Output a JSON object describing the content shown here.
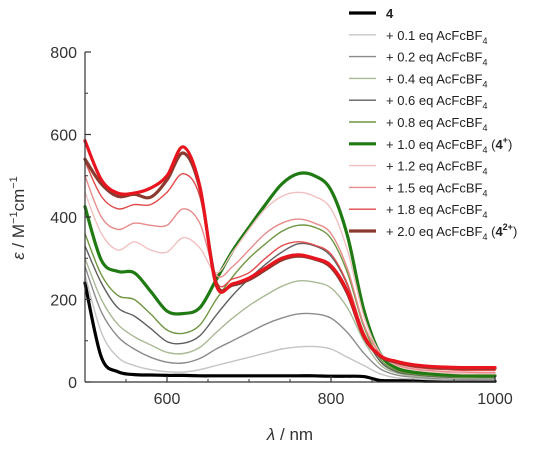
{
  "chart_data": {
    "type": "line",
    "title": "",
    "xlabel": {
      "symbol": "λ",
      "unit": " / nm"
    },
    "ylabel": {
      "symbol": "ε",
      "unit": " / M",
      "sup1": "−1",
      "mid": "cm",
      "sup2": "−1"
    },
    "xlim": [
      500,
      1000
    ],
    "ylim": [
      0,
      800
    ],
    "xticks": [
      600,
      800,
      1000
    ],
    "yticks": [
      0,
      200,
      400,
      600,
      800
    ],
    "grid": false,
    "legend_position": "top-right",
    "x": [
      500,
      520,
      540,
      560,
      580,
      600,
      620,
      640,
      660,
      680,
      700,
      720,
      740,
      760,
      780,
      800,
      820,
      840,
      860,
      880,
      900,
      920,
      940,
      960,
      980,
      1000
    ],
    "series": [
      {
        "name": {
          "bold": "4"
        },
        "color": "#000000",
        "width": 3.2,
        "values": [
          240,
          60,
          25,
          18,
          17,
          16,
          16,
          15,
          15,
          15,
          15,
          15,
          15,
          15,
          15,
          14,
          14,
          13,
          4,
          3,
          3,
          2,
          2,
          2,
          2,
          2
        ]
      },
      {
        "name": {
          "pre": "+ 0.1 eq AcFcBF",
          "sub": "4"
        },
        "color": "#c4c4c4",
        "width": 1.4,
        "values": [
          260,
          120,
          60,
          40,
          30,
          25,
          24,
          30,
          40,
          50,
          60,
          70,
          80,
          85,
          86,
          80,
          60,
          40,
          20,
          10,
          8,
          6,
          5,
          5,
          5,
          5
        ]
      },
      {
        "name": {
          "pre": "+ 0.2 eq AcFcBF",
          "sub": "4"
        },
        "color": "#8c8c8c",
        "width": 1.4,
        "values": [
          280,
          170,
          110,
          80,
          60,
          48,
          46,
          57,
          80,
          100,
          120,
          140,
          155,
          165,
          165,
          155,
          120,
          70,
          32,
          17,
          12,
          9,
          8,
          7,
          7,
          7
        ]
      },
      {
        "name": {
          "pre": "+ 0.4 eq AcFcBF",
          "sub": "4"
        },
        "color": "#a9b995",
        "width": 1.4,
        "values": [
          300,
          200,
          140,
          110,
          90,
          72,
          69,
          84,
          120,
          155,
          185,
          210,
          232,
          245,
          242,
          228,
          180,
          100,
          42,
          22,
          15,
          12,
          10,
          9,
          9,
          9
        ]
      },
      {
        "name": {
          "pre": "+ 0.6 eq AcFcBF",
          "sub": "4"
        },
        "color": "#5f5f5f",
        "width": 1.4,
        "values": [
          330,
          240,
          180,
          160,
          130,
          98,
          94,
          112,
          162,
          210,
          250,
          285,
          315,
          335,
          330,
          305,
          235,
          120,
          50,
          25,
          18,
          14,
          12,
          11,
          11,
          11
        ]
      },
      {
        "name": {
          "pre": "+ 0.8 eq AcFcBF",
          "sub": "4"
        },
        "color": "#6f9640",
        "width": 1.4,
        "values": [
          360,
          260,
          210,
          200,
          165,
          126,
          118,
          138,
          200,
          255,
          300,
          335,
          365,
          380,
          375,
          348,
          265,
          135,
          56,
          28,
          20,
          16,
          14,
          12,
          12,
          12
        ]
      },
      {
        "name": {
          "pre": "+ 1.0 eq AcFcBF",
          "sub": "4",
          "mid": " (",
          "bold": "4",
          "sup": "+",
          "post": ")"
        },
        "color": "#1f7a12",
        "width": 3.2,
        "values": [
          425,
          295,
          268,
          265,
          220,
          172,
          166,
          180,
          248,
          318,
          375,
          430,
          480,
          505,
          500,
          465,
          355,
          175,
          68,
          34,
          24,
          20,
          17,
          16,
          15,
          15
        ]
      },
      {
        "name": {
          "pre": "+ 1.2 eq AcFcBF",
          "sub": "4"
        },
        "color": "#f2c0c0",
        "width": 1.4,
        "values": [
          460,
          360,
          320,
          340,
          320,
          315,
          350,
          325,
          265,
          315,
          370,
          420,
          450,
          460,
          450,
          420,
          320,
          160,
          70,
          40,
          30,
          25,
          22,
          20,
          20,
          20
        ]
      },
      {
        "name": {
          "pre": "+ 1.5 eq AcFcBF",
          "sub": "4"
        },
        "color": "#e88a8a",
        "width": 1.4,
        "values": [
          500,
          400,
          370,
          385,
          380,
          380,
          420,
          385,
          260,
          280,
          320,
          360,
          385,
          395,
          385,
          360,
          275,
          140,
          68,
          42,
          32,
          28,
          25,
          24,
          23,
          23
        ]
      },
      {
        "name": {
          "pre": "+ 1.8 eq AcFcBF",
          "sub": "4"
        },
        "color": "#e24a4a",
        "width": 1.4,
        "values": [
          535,
          450,
          420,
          430,
          430,
          460,
          505,
          450,
          245,
          250,
          265,
          300,
          330,
          340,
          332,
          310,
          238,
          120,
          65,
          45,
          36,
          32,
          30,
          28,
          28,
          28
        ]
      },
      {
        "name": {
          "pre": "+ 2.0 eq AcFcBF",
          "sub": "4",
          "mid": " (",
          "bold": "4",
          "sup": "2+",
          "post": ")"
        },
        "color": "#8b3a2f",
        "width": 3.2,
        "values": [
          540,
          480,
          450,
          455,
          448,
          490,
          555,
          470,
          240,
          235,
          248,
          272,
          296,
          305,
          298,
          278,
          215,
          110,
          62,
          48,
          40,
          36,
          34,
          33,
          33,
          33
        ]
      },
      {
        "name": {
          "pre": "",
          "sub": ""
        },
        "color": "#e8141e",
        "width": 3.2,
        "hidden_legend": true,
        "values": [
          585,
          490,
          458,
          458,
          470,
          500,
          570,
          475,
          235,
          238,
          252,
          276,
          300,
          308,
          300,
          282,
          220,
          112,
          64,
          50,
          42,
          38,
          36,
          35,
          35,
          35
        ]
      }
    ]
  }
}
